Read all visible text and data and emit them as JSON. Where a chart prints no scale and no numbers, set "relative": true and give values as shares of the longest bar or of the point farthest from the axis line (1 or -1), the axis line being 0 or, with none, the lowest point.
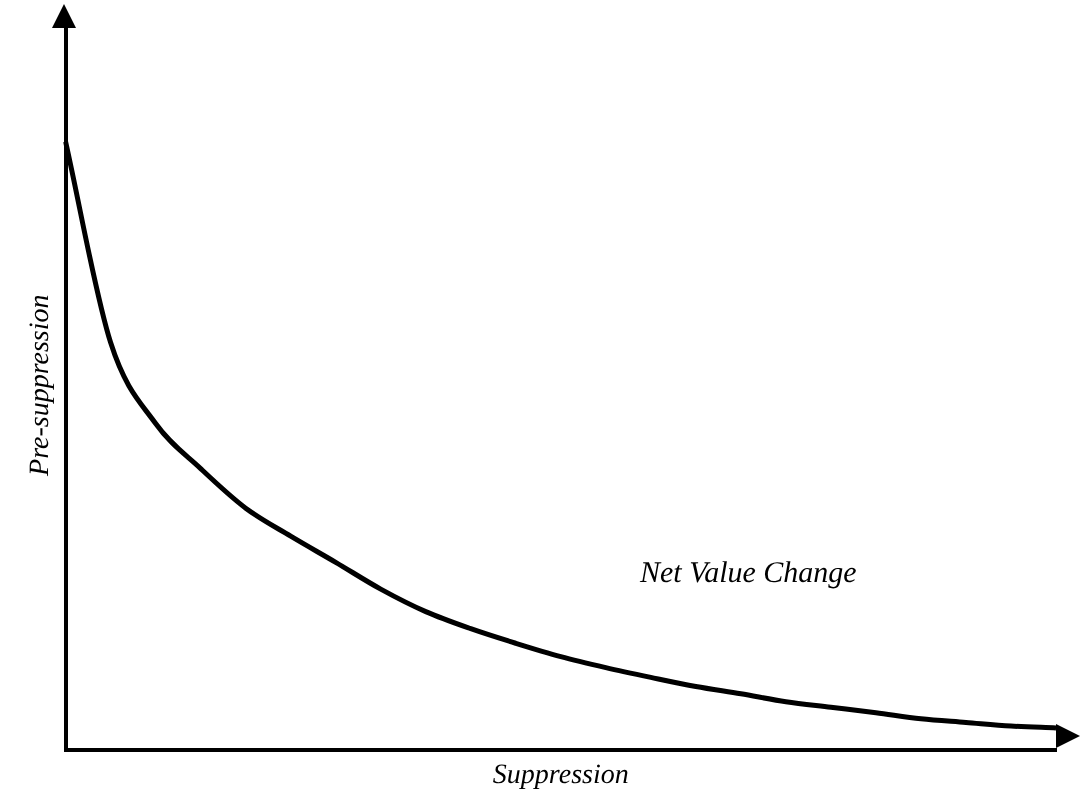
{
  "chart_data": {
    "type": "line",
    "relative": true,
    "xlabel": "Suppression",
    "ylabel": "Pre-suppression",
    "annotations": [
      "Net Value Change"
    ],
    "categories": [
      null,
      null,
      null,
      null,
      null,
      null,
      null,
      null,
      null,
      null,
      null,
      null,
      null,
      null,
      null,
      null,
      null,
      null,
      null,
      null,
      null,
      null,
      null
    ],
    "series": [
      {
        "color": "#000000",
        "values": [
          1.0,
          0.67,
          0.537,
          0.463,
          0.398,
          0.352,
          0.309,
          0.265,
          0.228,
          0.2,
          0.176,
          0.154,
          0.136,
          0.12,
          0.105,
          0.093,
          0.08,
          0.071,
          0.062,
          0.052,
          0.046,
          0.04,
          0.037
        ]
      }
    ],
    "marker": "none",
    "grid": false,
    "legend": false
  }
}
